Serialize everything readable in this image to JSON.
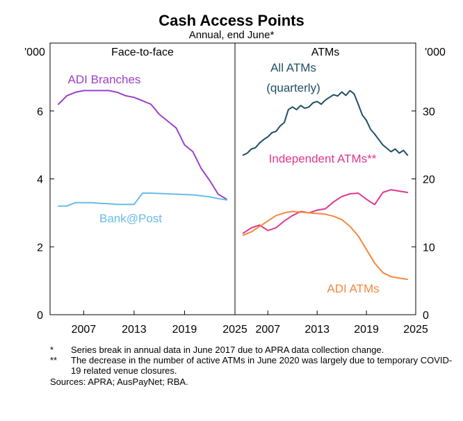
{
  "chart_data": {
    "title": "Cash Access Points",
    "subtitle": "Annual, end June*",
    "type": "line",
    "panels": [
      {
        "name": "Face-to-face",
        "axis_unit": "'000",
        "axis_side": "left",
        "ylim": [
          0,
          8
        ],
        "yticks": [
          0,
          2,
          4,
          6
        ],
        "xlim": [
          2003,
          2025
        ],
        "xticks": [
          2007,
          2013,
          2019,
          2025
        ],
        "series": [
          {
            "name": "ADI Branches",
            "color": "#9b3fc9",
            "x": [
              2004,
              2005,
              2006,
              2007,
              2008,
              2009,
              2010,
              2011,
              2012,
              2013,
              2014,
              2015,
              2016,
              2017,
              2018,
              2019,
              2020,
              2021,
              2022,
              2023,
              2024
            ],
            "y": [
              6.2,
              6.45,
              6.55,
              6.6,
              6.6,
              6.6,
              6.6,
              6.55,
              6.45,
              6.4,
              6.3,
              6.2,
              5.9,
              5.7,
              5.5,
              5.0,
              4.8,
              4.3,
              3.95,
              3.55,
              3.4
            ]
          },
          {
            "name": "Bank@Post",
            "color": "#66bde6",
            "x": [
              2004,
              2005,
              2006,
              2007,
              2008,
              2009,
              2010,
              2011,
              2012,
              2013,
              2014,
              2015,
              2016,
              2017,
              2018,
              2019,
              2020,
              2021,
              2022,
              2023,
              2024
            ],
            "y": [
              3.2,
              3.2,
              3.3,
              3.3,
              3.3,
              3.28,
              3.27,
              3.25,
              3.25,
              3.25,
              3.58,
              3.58,
              3.57,
              3.56,
              3.55,
              3.54,
              3.53,
              3.5,
              3.47,
              3.42,
              3.38
            ]
          }
        ],
        "annotations": [
          {
            "text": "ADI Branches",
            "color": "#9b3fc9"
          },
          {
            "text": "Bank@Post",
            "color": "#66bde6"
          }
        ]
      },
      {
        "name": "ATMs",
        "axis_unit": "'000",
        "axis_side": "right",
        "ylim": [
          0,
          40
        ],
        "yticks": [
          0,
          10,
          20,
          30
        ],
        "xlim": [
          2003,
          2025
        ],
        "xticks": [
          2007,
          2013,
          2019,
          2025
        ],
        "series": [
          {
            "name": "All ATMs (quarterly)",
            "color": "#1f4e63",
            "x": [
              2004,
              2004.5,
              2005,
              2005.5,
              2006,
              2006.5,
              2007,
              2007.5,
              2008,
              2008.5,
              2009,
              2009.5,
              2010,
              2010.5,
              2011,
              2011.5,
              2012,
              2012.5,
              2013,
              2013.5,
              2014,
              2014.5,
              2015,
              2015.5,
              2016,
              2016.5,
              2017,
              2017.5,
              2018,
              2018.5,
              2019,
              2019.5,
              2020,
              2020.5,
              2021,
              2021.5,
              2022,
              2022.5,
              2023,
              2023.5,
              2024
            ],
            "y": [
              23.5,
              23.8,
              24.4,
              24.6,
              25.3,
              25.8,
              26.2,
              26.8,
              27.0,
              27.8,
              28.3,
              30.2,
              30.6,
              30.2,
              30.8,
              30.4,
              30.6,
              31.2,
              31.4,
              31.0,
              31.6,
              32.0,
              32.4,
              32.2,
              32.8,
              32.3,
              33.0,
              32.5,
              31.0,
              29.4,
              28.6,
              27.3,
              26.6,
              25.8,
              25.0,
              24.5,
              24.0,
              24.4,
              23.8,
              24.2,
              23.5
            ]
          },
          {
            "name": "Independent ATMs**",
            "color": "#e0368c",
            "x": [
              2004,
              2005,
              2006,
              2007,
              2008,
              2009,
              2010,
              2011,
              2012,
              2013,
              2014,
              2015,
              2016,
              2017,
              2018,
              2019,
              2020,
              2021,
              2022,
              2023,
              2024
            ],
            "y": [
              12.0,
              12.8,
              13.2,
              12.4,
              12.8,
              13.8,
              14.6,
              15.2,
              15.0,
              15.4,
              15.6,
              16.6,
              17.4,
              17.8,
              17.9,
              17.0,
              16.2,
              18.0,
              18.4,
              18.2,
              18.0
            ]
          },
          {
            "name": "ADI ATMs",
            "color": "#f5873d",
            "x": [
              2004,
              2005,
              2006,
              2007,
              2008,
              2009,
              2010,
              2011,
              2012,
              2013,
              2014,
              2015,
              2016,
              2017,
              2018,
              2019,
              2020,
              2021,
              2022,
              2023,
              2024
            ],
            "y": [
              11.7,
              12.2,
              13.0,
              13.8,
              14.6,
              15.0,
              15.2,
              15.1,
              15.0,
              14.9,
              14.8,
              14.5,
              14.0,
              13.0,
              11.6,
              9.6,
              7.6,
              6.2,
              5.6,
              5.4,
              5.2
            ]
          }
        ],
        "annotations": [
          {
            "text": "All ATMs",
            "color": "#1f4e63"
          },
          {
            "text": "(quarterly)",
            "color": "#1f4e63"
          },
          {
            "text": "Independent ATMs**",
            "color": "#e0368c"
          },
          {
            "text": "ADI ATMs",
            "color": "#f5873d"
          }
        ]
      }
    ]
  },
  "notes": [
    {
      "marker": "*",
      "text": "Series break in annual data in June 2017 due to APRA data collection change."
    },
    {
      "marker": "**",
      "text": "The decrease in the number of active ATMs in June 2020 was largely due to temporary COVID-19 related venue closures."
    }
  ],
  "sources": "Sources:  APRA; AusPayNet; RBA."
}
